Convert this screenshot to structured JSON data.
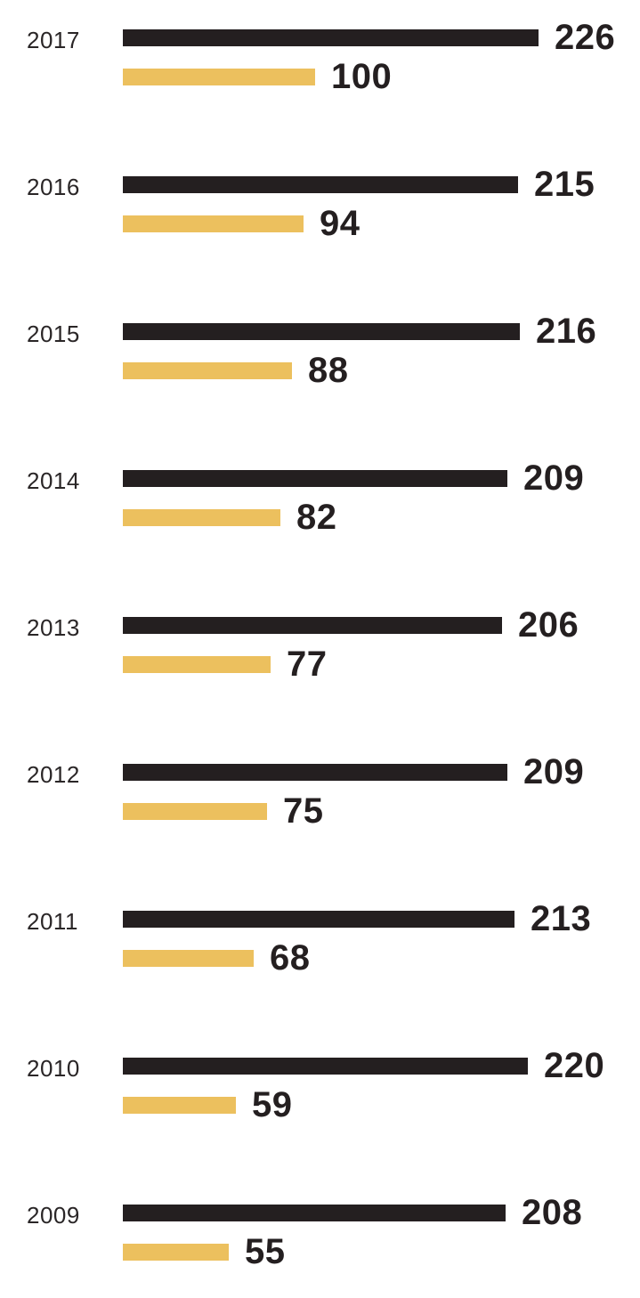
{
  "chart_data": {
    "type": "bar",
    "orientation": "horizontal",
    "title": "",
    "xlabel": "",
    "ylabel": "",
    "legend": "none",
    "grid": false,
    "value_labels": "right-of-bar",
    "categories": [
      "2017",
      "2016",
      "2015",
      "2014",
      "2013",
      "2012",
      "2011",
      "2010",
      "2009"
    ],
    "series": [
      {
        "name": "dark-series",
        "color": "#241f20",
        "values": [
          226,
          215,
          216,
          209,
          206,
          209,
          213,
          220,
          208
        ]
      },
      {
        "name": "gold-series",
        "color": "#ecc05e",
        "values": [
          100,
          94,
          88,
          82,
          77,
          75,
          68,
          59,
          55
        ]
      }
    ],
    "xlim": [
      0,
      240
    ]
  },
  "colors": {
    "background": "#ffffff",
    "text": "#241f20",
    "year_text": "#2a2627"
  }
}
